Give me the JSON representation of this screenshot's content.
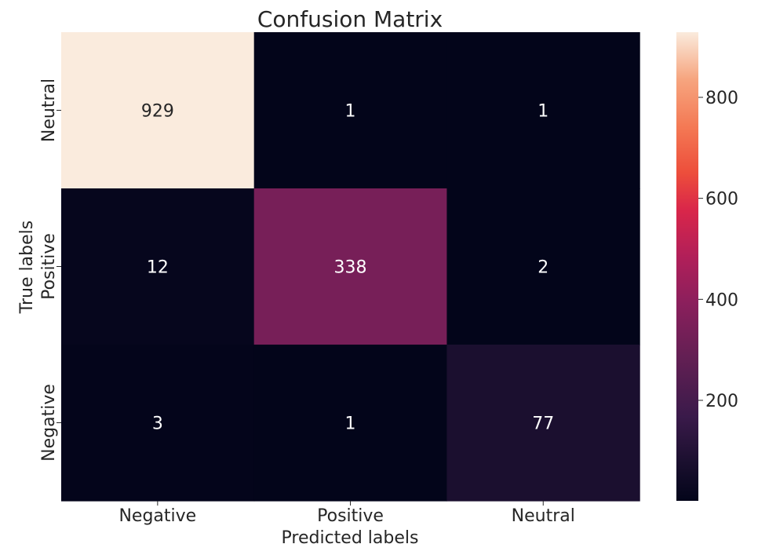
{
  "chart_data": {
    "type": "heatmap",
    "title": "Confusion Matrix",
    "xlabel": "Predicted labels",
    "ylabel": "True labels",
    "x_categories": [
      "Negative",
      "Positive",
      "Neutral"
    ],
    "y_categories": [
      "Neutral",
      "Positive",
      "Negative"
    ],
    "values": [
      [
        929,
        1,
        1
      ],
      [
        12,
        338,
        2
      ],
      [
        3,
        1,
        77
      ]
    ],
    "colorbar": {
      "min": 1,
      "max": 929,
      "ticks": [
        200,
        400,
        600,
        800
      ],
      "colormap": "rocket"
    },
    "annotation_colors": {
      "on_light": "#262626",
      "on_dark": "#ffffff"
    }
  }
}
